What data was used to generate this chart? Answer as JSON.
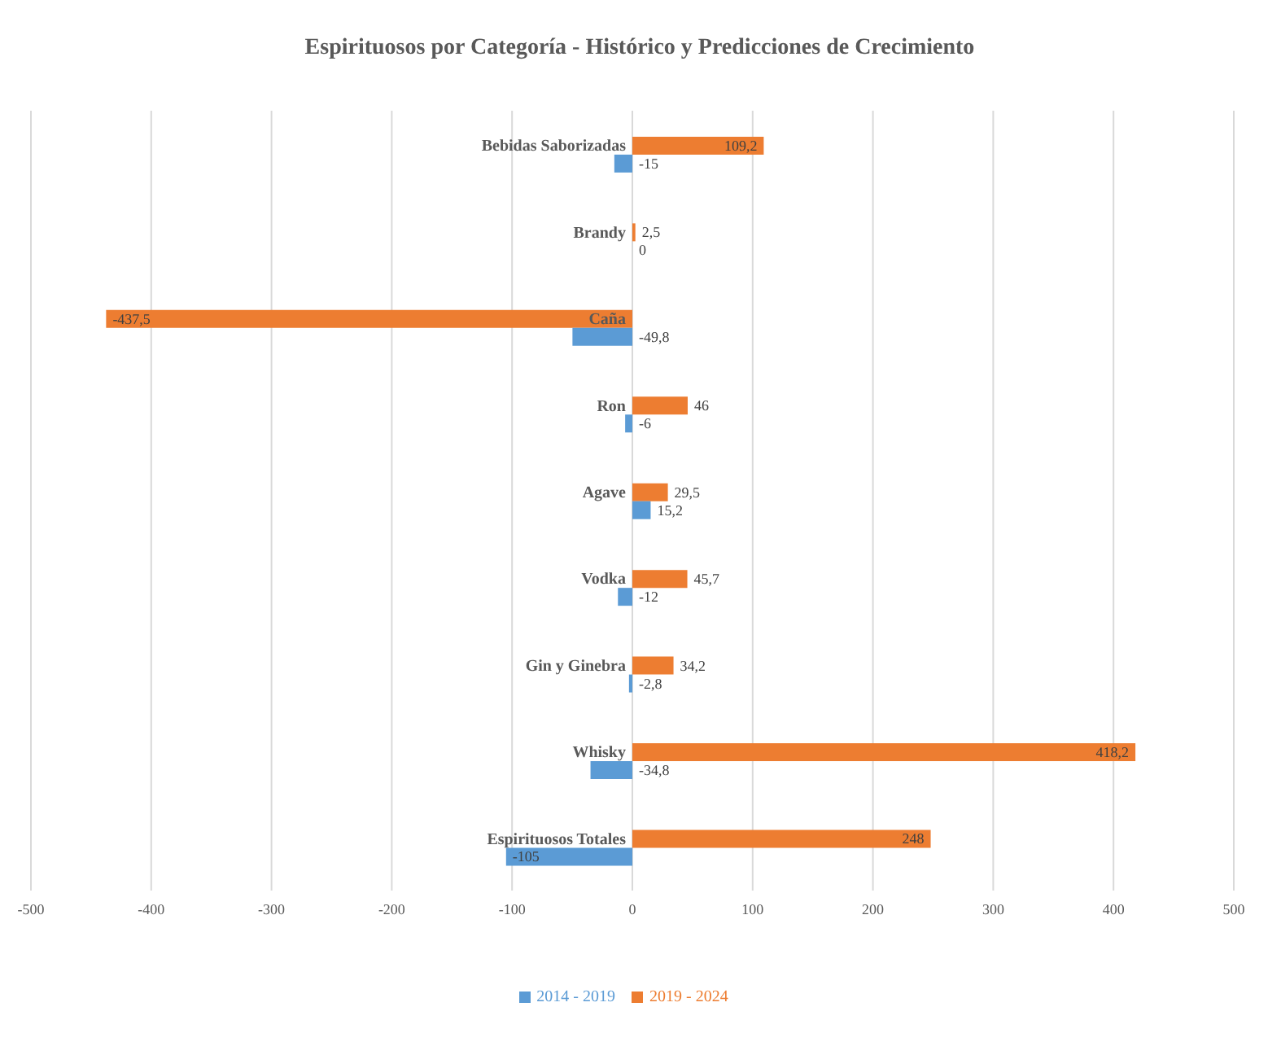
{
  "chart_data": {
    "type": "bar",
    "orientation": "horizontal",
    "title": "Espirituosos por Categoría - Histórico y Predicciones de Crecimiento",
    "categories": [
      "Bebidas Saborizadas",
      "Brandy",
      "Caña",
      "Ron",
      "Agave",
      "Vodka",
      "Gin y Ginebra",
      "Whisky",
      "Espirituosos Totales"
    ],
    "series": [
      {
        "name": "2019 - 2024",
        "color": "#ed7d31",
        "values": [
          109.2,
          2.5,
          -437.5,
          46,
          29.5,
          45.7,
          34.2,
          418.2,
          248
        ],
        "value_labels": [
          "109,2",
          "2,5",
          "-437,5",
          "46",
          "29,5",
          "45,7",
          "34,2",
          "418,2",
          "248"
        ]
      },
      {
        "name": "2014 - 2019",
        "color": "#5b9bd5",
        "values": [
          -15,
          0,
          -49.8,
          -6,
          15.2,
          -12,
          -2.8,
          -34.8,
          -105
        ],
        "value_labels": [
          "-15",
          "0",
          "-49,8",
          "-6",
          "15,2",
          "-12",
          "-2,8",
          "-34,8",
          "-105"
        ]
      }
    ],
    "xlim": [
      -500,
      500
    ],
    "xticks": [
      -500,
      -400,
      -300,
      -200,
      -100,
      0,
      100,
      200,
      300,
      400,
      500
    ],
    "grid": "x",
    "legend": "bottom"
  }
}
